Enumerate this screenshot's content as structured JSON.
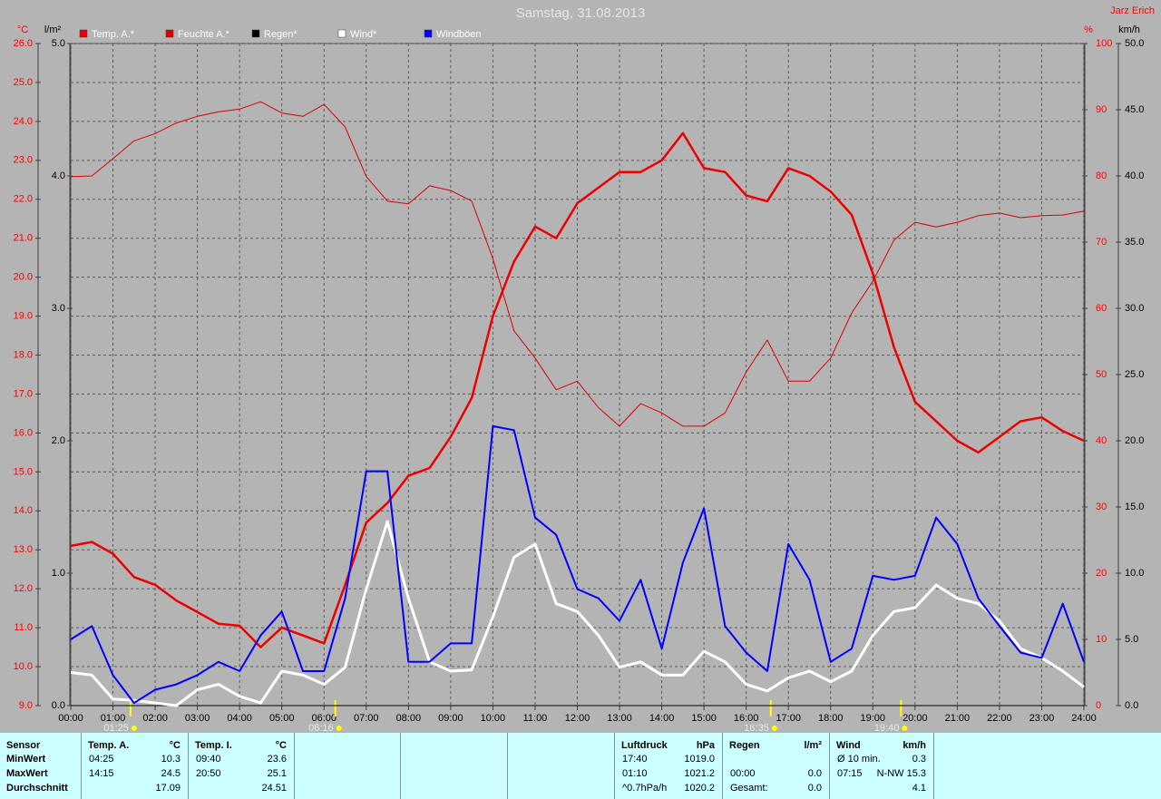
{
  "chart_data": {
    "type": "line",
    "title": "Samstag, 31.08.2013",
    "author": "Jarz Erich",
    "xlim": [
      0,
      24
    ],
    "xticks": [
      {
        "value": 0,
        "label": "00:00"
      },
      {
        "value": 1,
        "label": "01:00"
      },
      {
        "value": 2,
        "label": "02:00"
      },
      {
        "value": 3,
        "label": "03:00"
      },
      {
        "value": 4,
        "label": "04:00"
      },
      {
        "value": 5,
        "label": "05:00"
      },
      {
        "value": 6,
        "label": "06:00"
      },
      {
        "value": 7,
        "label": "07:00"
      },
      {
        "value": 8,
        "label": "08:00"
      },
      {
        "value": 9,
        "label": "09:00"
      },
      {
        "value": 10,
        "label": "10:00"
      },
      {
        "value": 11,
        "label": "11:00"
      },
      {
        "value": 12,
        "label": "12:00"
      },
      {
        "value": 13,
        "label": "13:00"
      },
      {
        "value": 14,
        "label": "14:00"
      },
      {
        "value": 15,
        "label": "15:00"
      },
      {
        "value": 16,
        "label": "16:00"
      },
      {
        "value": 17,
        "label": "17:00"
      },
      {
        "value": 18,
        "label": "18:00"
      },
      {
        "value": 19,
        "label": "19:00"
      },
      {
        "value": 20,
        "label": "20:00"
      },
      {
        "value": 21,
        "label": "21:00"
      },
      {
        "value": 22,
        "label": "22:00"
      },
      {
        "value": 23,
        "label": "23:00"
      },
      {
        "value": 24,
        "label": "24:00"
      }
    ],
    "grid": true,
    "axes": [
      {
        "label": "°C",
        "color": "#ff0000",
        "lim": [
          9,
          26
        ],
        "grid": true,
        "ticks": [
          {
            "value": 9,
            "label": "9.0"
          },
          {
            "value": 10,
            "label": "10.0"
          },
          {
            "value": 11,
            "label": "11.0"
          },
          {
            "value": 12,
            "label": "12.0"
          },
          {
            "value": 13,
            "label": "13.0"
          },
          {
            "value": 14,
            "label": "14.0"
          },
          {
            "value": 15,
            "label": "15.0"
          },
          {
            "value": 16,
            "label": "16.0"
          },
          {
            "value": 17,
            "label": "17.0"
          },
          {
            "value": 18,
            "label": "18.0"
          },
          {
            "value": 19,
            "label": "19.0"
          },
          {
            "value": 20,
            "label": "20.0"
          },
          {
            "value": 21,
            "label": "21.0"
          },
          {
            "value": 22,
            "label": "22.0"
          },
          {
            "value": 23,
            "label": "23.0"
          },
          {
            "value": 24,
            "label": "24.0"
          },
          {
            "value": 25,
            "label": "25.0"
          },
          {
            "value": 26,
            "label": "26.0"
          }
        ]
      },
      {
        "label": "l/m²",
        "color": "#000000",
        "lim": [
          0,
          5
        ],
        "grid": false,
        "ticks": [
          {
            "value": 0,
            "label": "0.0"
          },
          {
            "value": 1,
            "label": "1.0"
          },
          {
            "value": 2,
            "label": "2.0"
          },
          {
            "value": 3,
            "label": "3.0"
          },
          {
            "value": 4,
            "label": "4.0"
          },
          {
            "value": 5,
            "label": "5.0"
          }
        ]
      },
      {
        "label": "%",
        "color": "#ff0000",
        "lim": [
          0,
          100
        ],
        "grid": false,
        "ticks": [
          0,
          10,
          20,
          30,
          40,
          50,
          60,
          70,
          80,
          90,
          100
        ]
      },
      {
        "label": "km/h",
        "color": "#000000",
        "lim": [
          0,
          50
        ],
        "grid": false,
        "ticks": [
          {
            "value": 0,
            "label": "0.0"
          },
          {
            "value": 5,
            "label": "5.0"
          },
          {
            "value": 10,
            "label": "10.0"
          },
          {
            "value": 15,
            "label": "15.0"
          },
          {
            "value": 20,
            "label": "20.0"
          },
          {
            "value": 25,
            "label": "25.0"
          },
          {
            "value": 30,
            "label": "30.0"
          },
          {
            "value": 35,
            "label": "35.0"
          },
          {
            "value": 40,
            "label": "40.0"
          },
          {
            "value": 45,
            "label": "45.0"
          },
          {
            "value": 50,
            "label": "50.0"
          }
        ]
      }
    ],
    "x": [
      0,
      0.5,
      1,
      1.5,
      2,
      2.5,
      3,
      3.5,
      4,
      4.5,
      5,
      5.5,
      6,
      6.5,
      7,
      7.5,
      8,
      8.5,
      9,
      9.5,
      10,
      10.5,
      11,
      11.5,
      12,
      12.5,
      13,
      13.5,
      14,
      14.5,
      15,
      15.5,
      16,
      16.5,
      17,
      17.5,
      18,
      18.5,
      19,
      19.5,
      20,
      20.5,
      21,
      21.5,
      22,
      22.5,
      23,
      23.5,
      24
    ],
    "series": [
      {
        "name": "Temp. A.*",
        "color": "#ee0000",
        "axis": 0,
        "width": 2.5,
        "values": [
          13.1,
          13.2,
          12.9,
          12.3,
          12.1,
          11.7,
          11.4,
          11.1,
          11.05,
          10.5,
          11.0,
          10.8,
          10.6,
          12.1,
          13.7,
          14.2,
          14.9,
          15.1,
          15.9,
          16.9,
          19.0,
          20.4,
          21.3,
          21.0,
          21.9,
          22.3,
          22.7,
          22.7,
          23.0,
          23.7,
          22.8,
          22.7,
          22.1,
          21.95,
          22.8,
          22.6,
          22.2,
          21.6,
          20.1,
          18.2,
          16.8,
          16.3,
          15.8,
          15.5,
          15.9,
          16.3,
          16.4,
          16.05,
          15.8
        ]
      },
      {
        "name": "Feuchte A.*",
        "color": "#dd0000",
        "axis": 2,
        "width": 1,
        "values": [
          79.9,
          80,
          82.6,
          85.3,
          86.4,
          88,
          89,
          89.7,
          90.1,
          91.2,
          89.5,
          89,
          90.8,
          87.4,
          79.9,
          76.2,
          75.8,
          78.5,
          77.8,
          76.2,
          67.5,
          56.6,
          52.5,
          47.7,
          49,
          45,
          42.2,
          45.6,
          44.2,
          42.2,
          42.2,
          44.2,
          50.4,
          55.2,
          49,
          49,
          52.5,
          59.3,
          64.1,
          70.3,
          73,
          72.3,
          73,
          74,
          74.4,
          73.7,
          74,
          74.1,
          74.7
        ]
      },
      {
        "name": "Regen*",
        "color": "#000000",
        "axis": 1,
        "width": 1,
        "values": [
          0,
          0,
          0,
          0,
          0,
          0,
          0,
          0,
          0,
          0,
          0,
          0,
          0,
          0,
          0,
          0,
          0,
          0,
          0,
          0,
          0,
          0,
          0,
          0,
          0,
          0,
          0,
          0,
          0,
          0,
          0,
          0,
          0,
          0,
          0,
          0,
          0,
          0,
          0,
          0,
          0,
          0,
          0,
          0,
          0,
          0,
          0,
          0,
          0
        ]
      },
      {
        "name": "Wind*",
        "color": "#ffffff",
        "axis": 3,
        "width": 3,
        "values": [
          2.5,
          2.3,
          0.5,
          0.4,
          0.2,
          0,
          1.2,
          1.6,
          0.7,
          0.2,
          2.6,
          2.3,
          1.6,
          2.9,
          8.8,
          13.9,
          8.1,
          3.3,
          2.6,
          2.7,
          6.7,
          11.2,
          12.2,
          7.7,
          7.1,
          5.3,
          2.9,
          3.3,
          2.3,
          2.3,
          4.1,
          3.3,
          1.6,
          1.1,
          2.1,
          2.6,
          1.8,
          2.6,
          5.3,
          7.1,
          7.4,
          9.1,
          8.1,
          7.7,
          6.4,
          4.3,
          3.6,
          2.6,
          1.4
        ]
      },
      {
        "name": "Windböen",
        "color": "#0000ff",
        "axis": 3,
        "width": 2,
        "values": [
          5,
          6,
          2.3,
          0.2,
          1.2,
          1.6,
          2.3,
          3.3,
          2.6,
          5.3,
          7.1,
          2.6,
          2.6,
          8.1,
          17.7,
          17.7,
          3.3,
          3.3,
          4.7,
          4.7,
          21.1,
          20.8,
          14.2,
          12.9,
          8.8,
          8.1,
          6.4,
          9.5,
          4.3,
          10.8,
          14.9,
          6,
          4,
          2.6,
          12.2,
          9.5,
          3.3,
          4.3,
          9.8,
          9.5,
          9.8,
          14.2,
          12.2,
          8.1,
          6,
          4,
          3.6,
          7.7,
          3.3
        ]
      }
    ],
    "annotations": [
      "01:25",
      "06:16",
      "16:35",
      "19:40"
    ]
  },
  "table": {
    "columns": [
      {
        "header": [
          "Sensor"
        ],
        "rows": [
          [
            "MinWert"
          ],
          [
            "MaxWert"
          ],
          [
            "Durchschnitt"
          ]
        ]
      },
      {
        "header": [
          "Temp. A.",
          "°C"
        ],
        "rows": [
          [
            "04:25",
            "10.3"
          ],
          [
            "14:15",
            "24.5"
          ],
          [
            null,
            "17.09"
          ]
        ]
      },
      {
        "header": [
          "Temp. I.",
          "°C"
        ],
        "rows": [
          [
            "09:40",
            "23.6"
          ],
          [
            "20:50",
            "25.1"
          ],
          [
            null,
            "24.51"
          ]
        ]
      },
      {
        "header": [
          "Luftdruck",
          "hPa"
        ],
        "rows": [
          [
            "17:40",
            "1019.0"
          ],
          [
            "01:10",
            "1021.2"
          ],
          [
            "^0.7hPa/h",
            "1020.2"
          ]
        ]
      },
      {
        "header": [
          "Regen",
          "l/m²"
        ],
        "rows": [
          [
            null,
            null
          ],
          [
            "00:00",
            "0.0"
          ],
          [
            "Gesamt:",
            "0.0"
          ]
        ]
      },
      {
        "header": [
          "Wind",
          "km/h"
        ],
        "rows": [
          [
            "Ø 10 min.",
            "0.3"
          ],
          [
            "07:15",
            "N-NW 15.3"
          ],
          [
            null,
            "4.1"
          ]
        ]
      }
    ]
  }
}
